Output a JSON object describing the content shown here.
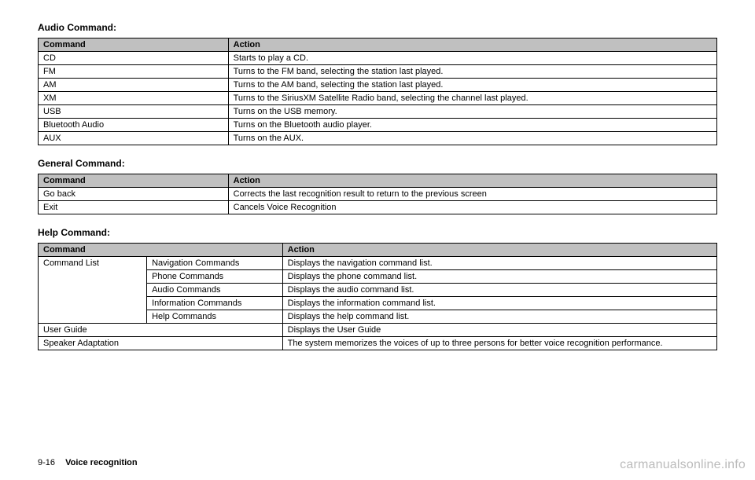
{
  "sections": {
    "audio": {
      "title": "Audio Command:",
      "headers": [
        "Command",
        "Action"
      ],
      "rows": [
        [
          "CD",
          "Starts to play a CD."
        ],
        [
          "FM",
          "Turns to the FM band, selecting the station last played."
        ],
        [
          "AM",
          "Turns to the AM band, selecting the station last played."
        ],
        [
          "XM",
          "Turns to the SiriusXM Satellite Radio band, selecting the channel last played."
        ],
        [
          "USB",
          "Turns on the USB memory."
        ],
        [
          "Bluetooth Audio",
          "Turns on the Bluetooth audio player."
        ],
        [
          "AUX",
          "Turns on the AUX."
        ]
      ]
    },
    "general": {
      "title": "General Command:",
      "headers": [
        "Command",
        "Action"
      ],
      "rows": [
        [
          "Go back",
          "Corrects the last recognition result to return to the previous screen"
        ],
        [
          "Exit",
          "Cancels Voice Recognition"
        ]
      ]
    },
    "help": {
      "title": "Help Command:",
      "headers": [
        "Command",
        "Action"
      ],
      "groupLabel": "Command List",
      "groupRows": [
        [
          "Navigation Commands",
          "Displays the navigation command list."
        ],
        [
          "Phone Commands",
          "Displays the phone command list."
        ],
        [
          "Audio Commands",
          "Displays the audio command list."
        ],
        [
          "Information Commands",
          "Displays the information command list."
        ],
        [
          "Help Commands",
          "Displays the help command list."
        ]
      ],
      "plainRows": [
        [
          "User Guide",
          "Displays the User Guide"
        ],
        [
          "Speaker Adaptation",
          "The system memorizes the voices of up to three persons for better voice recognition performance."
        ]
      ]
    }
  },
  "footer": {
    "page": "9-16",
    "section": "Voice recognition"
  },
  "watermark": "carmanualsonline.info",
  "style": {
    "header_bg": "#c0c0c0",
    "border_color": "#000000",
    "font_size_body": 11,
    "font_size_title": 12,
    "watermark_color": "#bbbbbb"
  }
}
